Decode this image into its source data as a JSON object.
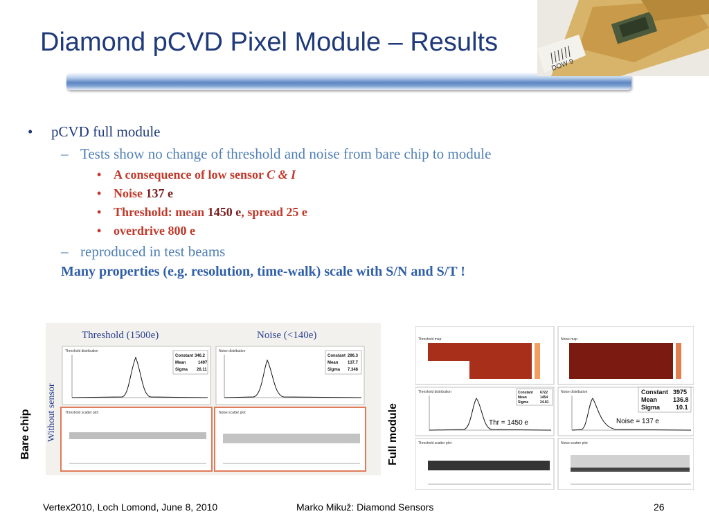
{
  "slide": {
    "title": "Diamond pCVD Pixel Module – Results",
    "photo_labels": {
      "text": "DOW 9"
    }
  },
  "bullets": {
    "l1": "pCVD full module",
    "l2a": "Tests show no change of threshold and noise from bare chip to module",
    "l3": [
      {
        "pre": "A consequence of low sensor ",
        "em": "C & I",
        "post": ""
      },
      {
        "pre": "Noise ",
        "em": "137 e",
        "post": ""
      },
      {
        "pre": "Threshold: mean ",
        "em": "1450 e",
        "post": ", spread 25 e"
      },
      {
        "pre": "overdrive 800 e",
        "em": "",
        "post": ""
      }
    ],
    "l2b": "reproduced in test beams",
    "l4": "Many properties (e.g. resolution, time-walk) scale with S/N and S/T !"
  },
  "figure_left": {
    "header_threshold": "Threshold (1500e)",
    "header_noise": "Noise (<140e)",
    "side_label": "Without sensor",
    "panel_titles": [
      "Threshold distribution",
      "Noise distribution",
      "Threshold scatter plot",
      "Noise scatter plot"
    ],
    "stats_threshold": {
      "constant_label": "Constant",
      "constant": "346.2",
      "mean_label": "Mean",
      "mean": "1497",
      "sigma_label": "Sigma",
      "sigma": "26.11"
    },
    "stats_noise": {
      "constant_label": "Constant",
      "constant": "296.3",
      "mean_label": "Mean",
      "mean": "137.7",
      "sigma_label": "Sigma",
      "sigma": "7.348"
    },
    "row_label": "Bare chip"
  },
  "figure_right": {
    "panel_titles": [
      "Threshold map",
      "Noise map",
      "Threshold distribution",
      "Noise distribution",
      "Threshold scatter plot",
      "Noise scatter plot"
    ],
    "stats_threshold": {
      "constant_label": "Constant",
      "constant": "6722",
      "mean_label": "Mean",
      "mean": "1454",
      "sigma_label": "Sigma",
      "sigma": "24.81"
    },
    "stats_noise": {
      "constant_label": "Constant",
      "constant": "3975",
      "mean_label": "Mean",
      "mean": "136.8",
      "sigma_label": "Sigma",
      "sigma": "10.1"
    },
    "thr_label": "Thr = 1450 e",
    "noise_label": "Noise = 137 e",
    "row_label": "Full module"
  },
  "footer": {
    "left": "Vertex2010, Loch Lomond, June 8, 2010",
    "center": "Marko Mikuž: Diamond Sensors",
    "page": "26"
  },
  "colors": {
    "title": "#1f3a7a",
    "accent": "#4f7fb5",
    "emph": "#c0392b",
    "dark_emph": "#7a1e1e"
  }
}
